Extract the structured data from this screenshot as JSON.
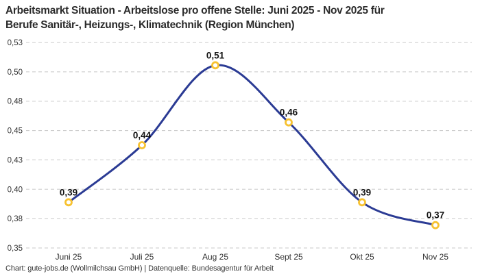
{
  "header": {
    "title_line1": "Arbeitsmarkt Situation - Arbeitslose pro offene Stelle: Juni 2025 - Nov 2025 für",
    "title_line2": "Berufe Sanitär-, Heizungs-, Klimatechnik (Region München)"
  },
  "footer": {
    "text": "Chart: gute-jobs.de (Wollmilchsau GmbH) | Datenquelle: Bundesagentur für Arbeit"
  },
  "chart_data": {
    "type": "line",
    "title": "Arbeitsmarkt Situation - Arbeitslose pro offene Stelle: Juni 2025 - Nov 2025 für Berufe Sanitär-, Heizungs-, Klimatechnik (Region München)",
    "categories": [
      "Juni 25",
      "Juli 25",
      "Aug 25",
      "Sept 25",
      "Okt 25",
      "Nov 25"
    ],
    "series": [
      {
        "name": "Arbeitslose pro offene Stelle",
        "values": [
          0.39,
          0.44,
          0.51,
          0.46,
          0.39,
          0.37
        ],
        "value_labels": [
          "0,39",
          "0,44",
          "0,51",
          "0,46",
          "0,39",
          "0,37"
        ]
      }
    ],
    "ylim": [
      0.35,
      0.53
    ],
    "ytick_labels": [
      "0,53",
      "0,50",
      "0,48",
      "0,45",
      "0,43",
      "0,40",
      "0,38",
      "0,35"
    ],
    "grid": "horizontal-dashed",
    "legend": "none",
    "colors": {
      "line": "#2b3b94",
      "marker_stroke": "#f7c231",
      "marker_fill": "#ffffff",
      "gridline": "#c8c8c8",
      "tick_text": "#333333",
      "value_label_text": "#111111"
    }
  }
}
